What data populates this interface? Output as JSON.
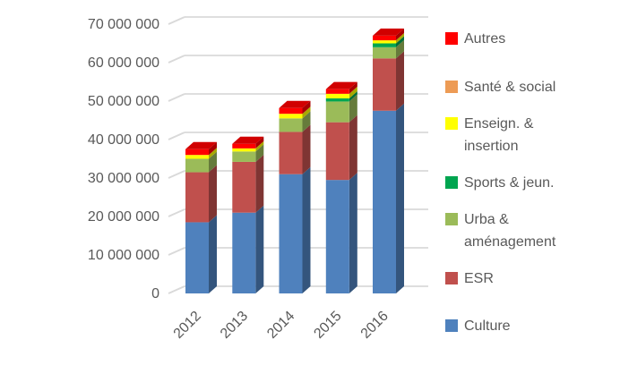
{
  "chart_data": {
    "type": "bar",
    "stacked": true,
    "style": "3d-column",
    "title": "",
    "xlabel": "",
    "ylabel": "",
    "categories": [
      "2012",
      "2013",
      "2014",
      "2015",
      "2016"
    ],
    "series": [
      {
        "name": "Culture",
        "color": "#4F81BD",
        "values": [
          18500000,
          21000000,
          31000000,
          29500000,
          47500000
        ]
      },
      {
        "name": "ESR",
        "color": "#C0504D",
        "values": [
          13000000,
          13200000,
          11000000,
          15000000,
          13600000
        ]
      },
      {
        "name": "Urba & aménagement",
        "color": "#9BBB59",
        "values": [
          3500000,
          2700000,
          3500000,
          5400000,
          2900000
        ]
      },
      {
        "name": "Sports & jeun.",
        "color": "#00A550",
        "values": [
          0,
          0,
          0,
          800000,
          1000000
        ]
      },
      {
        "name": "Enseign. & insertion",
        "color": "#FFFF00",
        "values": [
          1000000,
          800000,
          1200000,
          1200000,
          800000
        ]
      },
      {
        "name": "Santé & social",
        "color": "#ED9B55",
        "values": [
          0,
          0,
          0,
          0,
          0
        ]
      },
      {
        "name": "Autres",
        "color": "#FF0000",
        "values": [
          1500000,
          1200000,
          1500000,
          1200000,
          1200000
        ]
      }
    ],
    "ylim": [
      0,
      70000000
    ],
    "y_ticks": [
      "0",
      "10 000 000",
      "20 000 000",
      "30 000 000",
      "40 000 000",
      "50 000 000",
      "60 000 000",
      "70 000 000"
    ],
    "grid": true,
    "gridline_color": "#D9D9D9",
    "axis_text_color": "#595959",
    "legend_position": "right"
  },
  "legend": {
    "items": [
      {
        "label": "Autres",
        "color": "#FF0000"
      },
      {
        "label": "Santé & social",
        "color": "#ED9B55"
      },
      {
        "label": "Enseign. & insertion",
        "color": "#FFFF00"
      },
      {
        "label": "Sports & jeun.",
        "color": "#00A550"
      },
      {
        "label": "Urba & aménagement",
        "color": "#9BBB59"
      },
      {
        "label": "ESR",
        "color": "#C0504D"
      },
      {
        "label": "Culture",
        "color": "#4F81BD"
      }
    ]
  }
}
